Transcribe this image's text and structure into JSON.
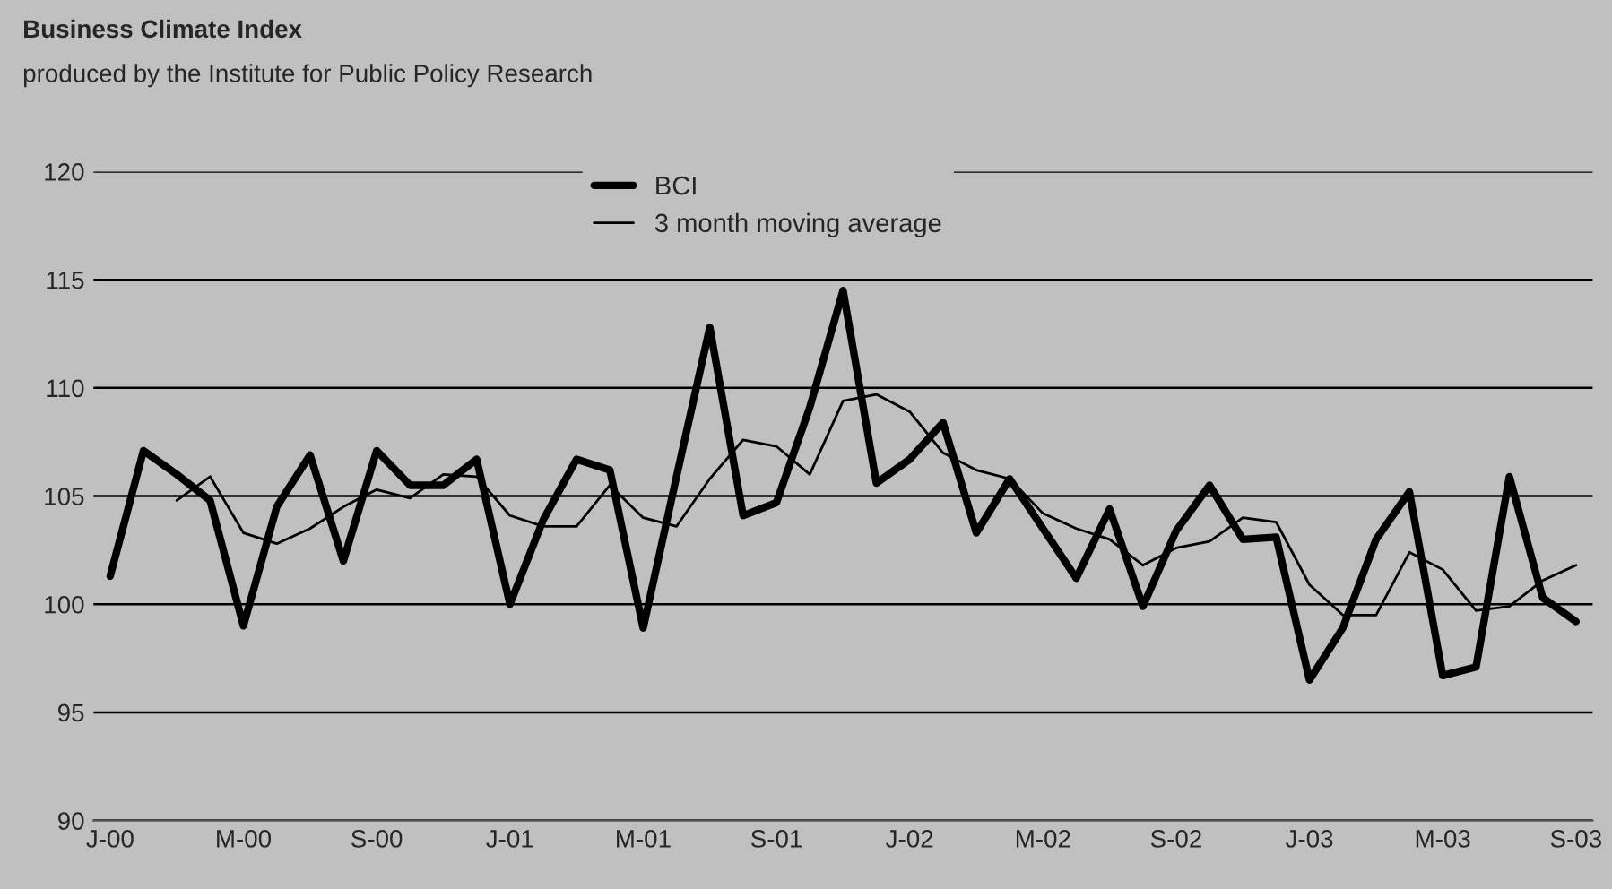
{
  "chart_data": {
    "type": "line",
    "title": "Business Climate Index",
    "subtitle": "produced by the Institute for Public Policy Research",
    "categories": [
      "J-00",
      null,
      null,
      null,
      "M-00",
      null,
      null,
      null,
      "S-00",
      null,
      null,
      null,
      "J-01",
      null,
      null,
      null,
      "M-01",
      null,
      null,
      null,
      "S-01",
      null,
      null,
      null,
      "J-02",
      null,
      null,
      null,
      "M-02",
      null,
      null,
      null,
      "S-02",
      null,
      null,
      null,
      "J-03",
      null,
      null,
      null,
      "M-03",
      null,
      null,
      null,
      "S-03"
    ],
    "series": [
      {
        "name": "BCI",
        "color": "#000000",
        "values": [
          101.3,
          107.1,
          106.0,
          104.8,
          99.0,
          104.5,
          106.9,
          102.0,
          107.1,
          105.5,
          105.5,
          106.7,
          100.0,
          103.9,
          106.7,
          106.2,
          98.9,
          105.9,
          112.8,
          104.1,
          104.7,
          109.1,
          114.5,
          105.6,
          106.7,
          108.4,
          103.3,
          105.8,
          103.5,
          101.2,
          104.4,
          99.9,
          103.4,
          105.5,
          103.0,
          103.1,
          96.5,
          98.9,
          103.0,
          105.2,
          96.7,
          97.1,
          105.9,
          100.3,
          99.2
        ]
      },
      {
        "name": "3 month moving average",
        "color": "#000000",
        "values": [
          null,
          null,
          104.8,
          105.9,
          103.3,
          102.8,
          103.5,
          104.5,
          105.3,
          104.9,
          106.0,
          105.9,
          104.1,
          103.6,
          103.6,
          105.5,
          104.0,
          103.6,
          105.8,
          107.6,
          107.3,
          106.0,
          109.4,
          109.7,
          108.9,
          107.0,
          106.2,
          105.8,
          104.2,
          103.5,
          103.0,
          101.8,
          102.6,
          102.9,
          104.0,
          103.8,
          100.9,
          99.5,
          99.5,
          102.4,
          101.6,
          99.7,
          99.9,
          101.1,
          101.8
        ]
      }
    ],
    "ylim": [
      90,
      120
    ],
    "yticks": [
      90,
      95,
      100,
      105,
      110,
      115,
      120
    ],
    "grid": "y",
    "legend": "top",
    "marker": "none",
    "line_style": "solid"
  }
}
